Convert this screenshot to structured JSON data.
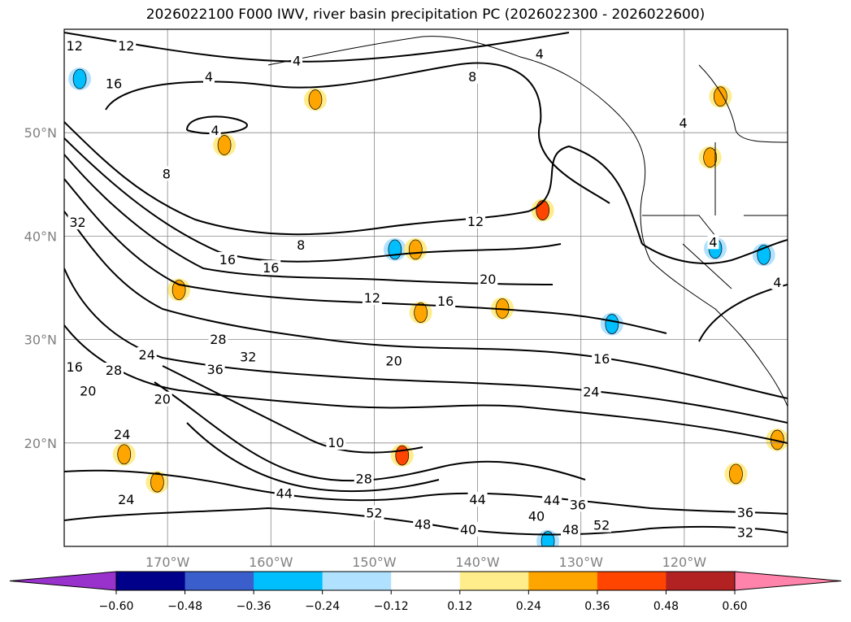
{
  "title": "2026022100 F000 IWV, river basin precipitation PC (2026022300 - 2026022600)",
  "map": {
    "extent": {
      "lon": [
        -180,
        -110
      ],
      "lat": [
        10,
        60
      ]
    },
    "lon_ticks": [
      {
        "value": -170,
        "label": "170°W"
      },
      {
        "value": -160,
        "label": "160°W"
      },
      {
        "value": -150,
        "label": "150°W"
      },
      {
        "value": -140,
        "label": "140°W"
      },
      {
        "value": -130,
        "label": "130°W"
      },
      {
        "value": -120,
        "label": "120°W"
      }
    ],
    "lat_ticks": [
      {
        "value": 50,
        "label": "50°N"
      },
      {
        "value": 40,
        "label": "40°N"
      },
      {
        "value": 30,
        "label": "30°N"
      },
      {
        "value": 20,
        "label": "20°N"
      }
    ],
    "contour_labels": [
      {
        "t": "12",
        "lon": -179,
        "lat": 59.7
      },
      {
        "t": "12",
        "lon": -174,
        "lat": 59.7
      },
      {
        "t": "16",
        "lon": -175.2,
        "lat": 54.6
      },
      {
        "t": "4",
        "lon": -165.4,
        "lat": 50.1
      },
      {
        "t": "4",
        "lon": -166,
        "lat": 55.3
      },
      {
        "t": "4",
        "lon": -157.5,
        "lat": 56.8
      },
      {
        "t": "8",
        "lon": -170.1,
        "lat": 45.9
      },
      {
        "t": "32",
        "lon": -178.7,
        "lat": 41.2
      },
      {
        "t": "12",
        "lon": -140.2,
        "lat": 41.3
      },
      {
        "t": "8",
        "lon": -157.1,
        "lat": 39
      },
      {
        "t": "16",
        "lon": -164.2,
        "lat": 37.6
      },
      {
        "t": "16",
        "lon": -160,
        "lat": 36.8
      },
      {
        "t": "20",
        "lon": -139,
        "lat": 35.7
      },
      {
        "t": "12",
        "lon": -150.2,
        "lat": 33.9
      },
      {
        "t": "16",
        "lon": -143.1,
        "lat": 33.6
      },
      {
        "t": "28",
        "lon": -165.1,
        "lat": 29.9
      },
      {
        "t": "24",
        "lon": -172,
        "lat": 28.4
      },
      {
        "t": "32",
        "lon": -162.2,
        "lat": 28.2
      },
      {
        "t": "20",
        "lon": -148.1,
        "lat": 27.8
      },
      {
        "t": "16",
        "lon": -128,
        "lat": 28
      },
      {
        "t": "36",
        "lon": -165.4,
        "lat": 27
      },
      {
        "t": "28",
        "lon": -175.2,
        "lat": 26.9
      },
      {
        "t": "16",
        "lon": -179,
        "lat": 27.2
      },
      {
        "t": "20",
        "lon": -177.7,
        "lat": 26.3
      },
      {
        "t": "24",
        "lon": -129,
        "lat": 24.8
      },
      {
        "t": "20",
        "lon": -170.5,
        "lat": 24.1
      },
      {
        "t": "24",
        "lon": -174.4,
        "lat": 20.7
      },
      {
        "t": "10",
        "lon": -153.7,
        "lat": 19.9
      },
      {
        "t": "28",
        "lon": -151,
        "lat": 16.4
      },
      {
        "t": "24",
        "lon": -174,
        "lat": 14.4
      },
      {
        "t": "44",
        "lon": -158.7,
        "lat": 15
      },
      {
        "t": "44",
        "lon": -140,
        "lat": 14.4
      },
      {
        "t": "52",
        "lon": -150,
        "lat": 13.1
      },
      {
        "t": "36",
        "lon": -130.3,
        "lat": 13.9
      },
      {
        "t": "40",
        "lon": -134.3,
        "lat": 12.8
      },
      {
        "t": "44",
        "lon": -132.8,
        "lat": 12.9
      },
      {
        "t": "48",
        "lon": -145.3,
        "lat": 12
      },
      {
        "t": "40",
        "lon": -140.9,
        "lat": 11.5
      },
      {
        "t": "48",
        "lon": -131,
        "lat": 11.5
      },
      {
        "t": "52",
        "lon": -128,
        "lat": 10.5
      },
      {
        "t": "32",
        "lon": -114.1,
        "lat": 11.2
      },
      {
        "t": "36",
        "lon": -114.1,
        "lat": 10.3
      },
      {
        "t": "4",
        "lon": -117.2,
        "lat": 39.3
      },
      {
        "t": "4",
        "lon": -111,
        "lat": 35.4
      },
      {
        "t": "4",
        "lon": -120.1,
        "lat": 50.8
      },
      {
        "t": "8",
        "lon": -140.5,
        "lat": 55.3
      },
      {
        "t": "4",
        "lon": -134,
        "lat": 57.5
      }
    ],
    "precip_blobs": [
      {
        "lon": -178.5,
        "lat": 55.2,
        "v": -0.3
      },
      {
        "lon": -155.7,
        "lat": 53.2,
        "v": 0.3
      },
      {
        "lon": -164.5,
        "lat": 48.8,
        "v": 0.3
      },
      {
        "lon": -133.7,
        "lat": 42.5,
        "v": 0.4
      },
      {
        "lon": -117.5,
        "lat": 47.6,
        "v": 0.3
      },
      {
        "lon": -116.5,
        "lat": 53.5,
        "v": 0.3
      },
      {
        "lon": -117,
        "lat": 38.8,
        "v": -0.3
      },
      {
        "lon": -112.3,
        "lat": 38.2,
        "v": -0.3
      },
      {
        "lon": -127,
        "lat": 31.5,
        "v": -0.3
      },
      {
        "lon": -148,
        "lat": 38.7,
        "v": -0.25
      },
      {
        "lon": -146,
        "lat": 38.7,
        "v": 0.25
      },
      {
        "lon": -147.3,
        "lat": 18.8,
        "v": 0.4
      },
      {
        "lon": -171,
        "lat": 16.2,
        "v": 0.3
      },
      {
        "lon": -168.9,
        "lat": 34.8,
        "v": 0.25
      },
      {
        "lon": -111,
        "lat": 20.3,
        "v": 0.3
      },
      {
        "lon": -133.2,
        "lat": 10.5,
        "v": -0.3
      },
      {
        "lon": -137.6,
        "lat": 33,
        "v": 0.3
      },
      {
        "lon": -145.5,
        "lat": 32.6,
        "v": 0.25
      },
      {
        "lon": -174.2,
        "lat": 18.9,
        "v": 0.25
      },
      {
        "lon": -115,
        "lat": 17,
        "v": 0.25
      }
    ]
  },
  "colorbar": {
    "colors": [
      "#9932cc",
      "#00008b",
      "#3a5fcd",
      "#00bfff",
      "#b0e2ff",
      "#ffffff",
      "#ffec8b",
      "#ffa500",
      "#ff4500",
      "#b22222",
      "#ff83aa"
    ],
    "ticks": [
      "−0.60",
      "−0.48",
      "−0.36",
      "−0.24",
      "−0.12",
      "0.12",
      "0.24",
      "0.36",
      "0.48",
      "0.60"
    ]
  }
}
